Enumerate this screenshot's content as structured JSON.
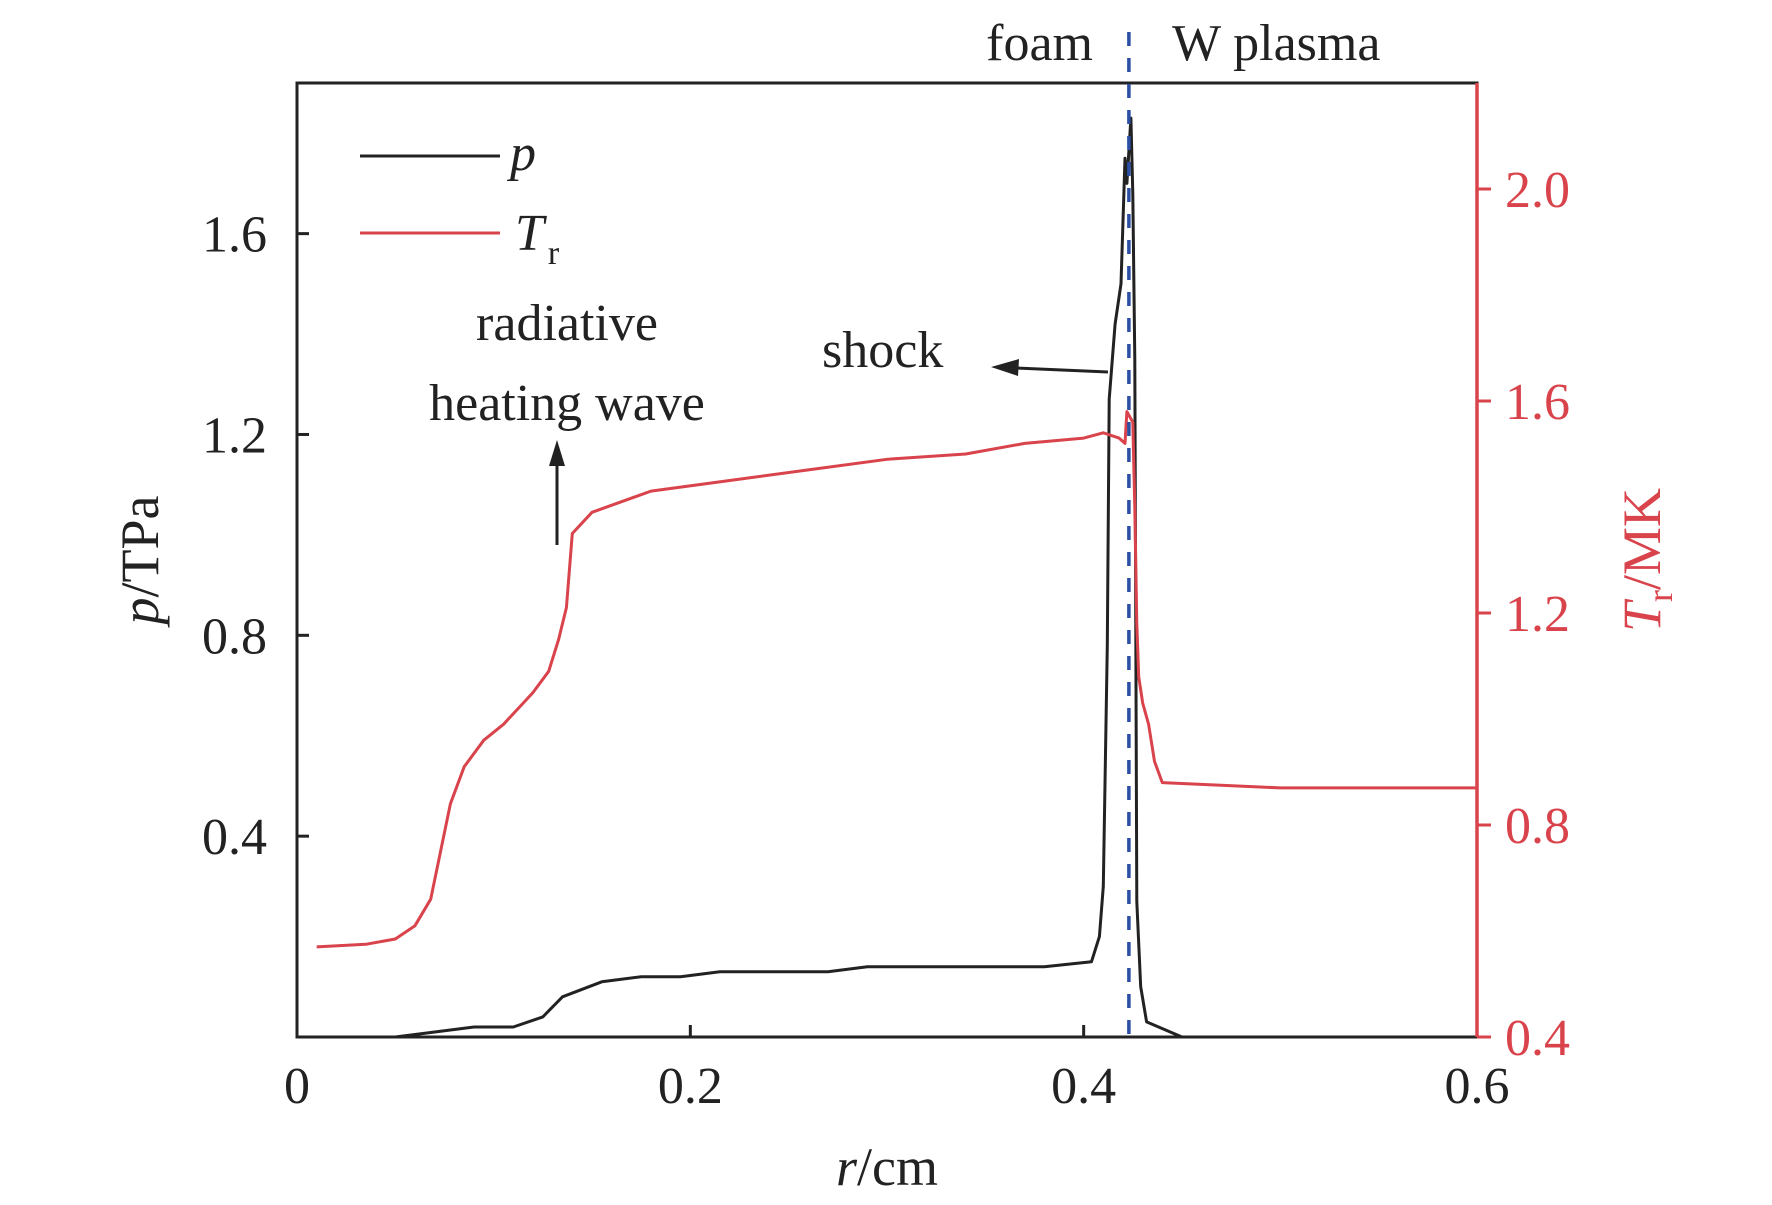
{
  "chart_data": {
    "type": "line",
    "x_axis": {
      "label_var": "r",
      "label_unit": "/cm",
      "range": [
        0,
        0.6
      ],
      "ticks": [
        0,
        0.2,
        0.4,
        0.6
      ],
      "tick_labels": [
        "0",
        "0.2",
        "0.4",
        "0.6"
      ]
    },
    "y_left": {
      "label_var": "p",
      "label_unit": "/TPa",
      "range": [
        0,
        1.9
      ],
      "ticks": [
        0.4,
        0.8,
        1.2,
        1.6
      ],
      "tick_labels": [
        "0.4",
        "0.8",
        "1.2",
        "1.6"
      ],
      "color": "#222222"
    },
    "y_right": {
      "label_var": "T",
      "label_sub": "r",
      "label_unit": "/MK",
      "range": [
        0.4,
        2.2
      ],
      "ticks": [
        0.4,
        0.8,
        1.2,
        1.6,
        2.0
      ],
      "tick_labels": [
        "0.4",
        "0.8",
        "1.2",
        "1.6",
        "2.0"
      ],
      "color": "#d9434b"
    },
    "grid": false,
    "legend": {
      "placement": "top-left",
      "entries": [
        {
          "var": "p",
          "sub": ""
        },
        {
          "var": "T",
          "sub": "r"
        }
      ]
    },
    "series": [
      {
        "name": "p",
        "axis": "left",
        "color": "#222222",
        "x": [
          0.01,
          0.05,
          0.07,
          0.09,
          0.11,
          0.125,
          0.135,
          0.155,
          0.175,
          0.195,
          0.215,
          0.27,
          0.29,
          0.38,
          0.404,
          0.408,
          0.41,
          0.412,
          0.413,
          0.416,
          0.419,
          0.421,
          0.422,
          0.424,
          0.425,
          0.426,
          0.427,
          0.429,
          0.432,
          0.45
        ],
        "y": [
          0.0,
          0.0,
          0.01,
          0.02,
          0.02,
          0.04,
          0.08,
          0.11,
          0.12,
          0.12,
          0.13,
          0.13,
          0.14,
          0.14,
          0.15,
          0.2,
          0.3,
          0.78,
          1.27,
          1.42,
          1.5,
          1.75,
          1.7,
          1.83,
          1.68,
          1.35,
          0.27,
          0.1,
          0.03,
          0.0
        ]
      },
      {
        "name": "Tr",
        "axis": "right",
        "color": "#d9434b",
        "x": [
          0.01,
          0.035,
          0.05,
          0.06,
          0.068,
          0.078,
          0.085,
          0.095,
          0.105,
          0.115,
          0.12,
          0.128,
          0.133,
          0.137,
          0.14,
          0.15,
          0.165,
          0.18,
          0.22,
          0.26,
          0.3,
          0.34,
          0.37,
          0.4,
          0.41,
          0.418,
          0.421,
          0.422,
          0.425,
          0.426,
          0.427,
          0.428,
          0.43,
          0.433,
          0.436,
          0.44,
          0.5,
          0.6
        ],
        "y": [
          0.57,
          0.575,
          0.585,
          0.61,
          0.66,
          0.84,
          0.91,
          0.96,
          0.99,
          1.03,
          1.05,
          1.09,
          1.15,
          1.21,
          1.35,
          1.39,
          1.41,
          1.43,
          1.45,
          1.47,
          1.49,
          1.5,
          1.52,
          1.53,
          1.54,
          1.53,
          1.52,
          1.58,
          1.56,
          1.4,
          1.18,
          1.08,
          1.03,
          0.99,
          0.92,
          0.88,
          0.87,
          0.87
        ]
      }
    ],
    "annotations": {
      "boundary_x": 0.423,
      "region_left": "foam",
      "region_right": "W plasma",
      "shock": "shock",
      "wave_line1": "radiative",
      "wave_line2": "heating wave"
    }
  }
}
